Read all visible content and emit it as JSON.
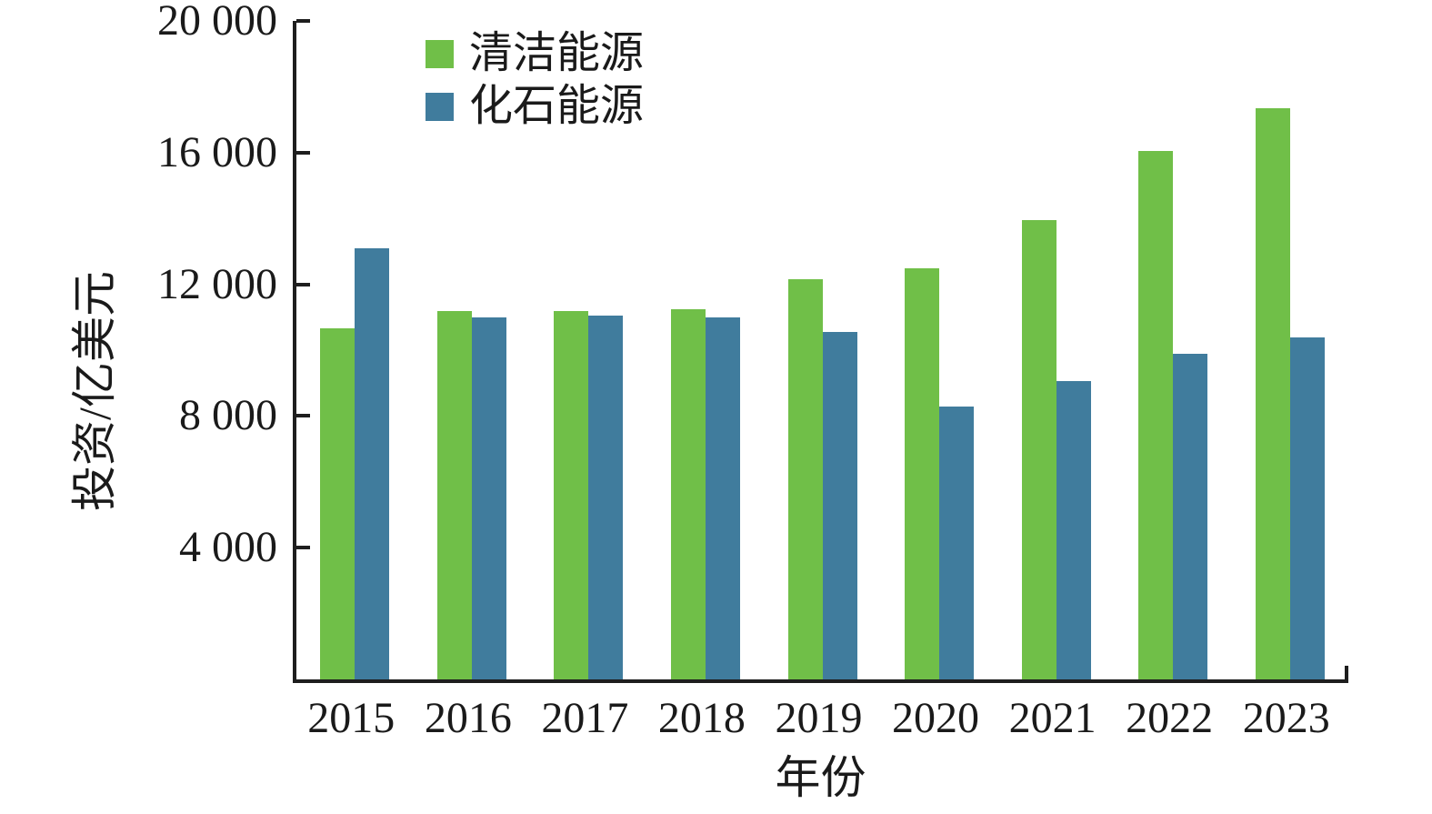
{
  "chart_data": {
    "type": "bar",
    "title": "",
    "xlabel": "年份",
    "ylabel": "投资/亿美元",
    "categories": [
      "2015",
      "2016",
      "2017",
      "2018",
      "2019",
      "2020",
      "2021",
      "2022",
      "2023"
    ],
    "series": [
      {
        "name": "清洁能源",
        "color": "#70BF48",
        "values": [
          10650,
          11200,
          11200,
          11250,
          12150,
          12500,
          13950,
          16050,
          17350
        ]
      },
      {
        "name": "化石能源",
        "color": "#407C9D",
        "values": [
          13100,
          11000,
          11050,
          11000,
          10550,
          8300,
          9050,
          9900,
          10400
        ]
      }
    ],
    "ylim": [
      0,
      20000
    ],
    "yticks": [
      {
        "value": 4000,
        "label": "4 000"
      },
      {
        "value": 8000,
        "label": "8 000"
      },
      {
        "value": 12000,
        "label": "12 000"
      },
      {
        "value": 16000,
        "label": "16 000"
      },
      {
        "value": 20000,
        "label": "20 000"
      }
    ],
    "grid": false,
    "legend_position": "top-left-inside",
    "axis_color": "#1e1e1e",
    "text_color": "#1a1a1a"
  }
}
